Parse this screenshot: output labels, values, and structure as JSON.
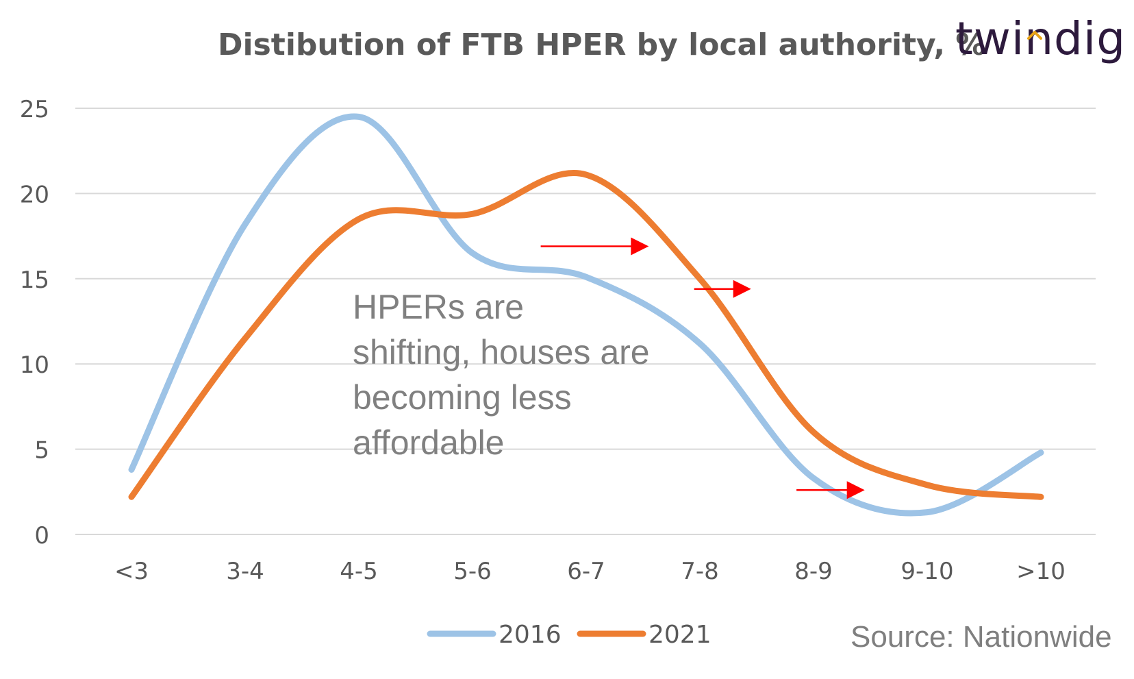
{
  "chart_data": {
    "type": "line",
    "title": "Distibution of FTB HPER by local authority, %",
    "categories": [
      "<3",
      "3-4",
      "4-5",
      "5-6",
      "6-7",
      "7-8",
      "8-9",
      "9-10",
      ">10"
    ],
    "series": [
      {
        "name": "2016",
        "values": [
          3.8,
          18.2,
          24.5,
          16.5,
          15.1,
          11.2,
          3.3,
          1.3,
          4.8
        ],
        "color": "#9dc3e6"
      },
      {
        "name": "2021",
        "values": [
          2.2,
          11.5,
          18.5,
          18.8,
          21.1,
          15.0,
          6.0,
          2.9,
          2.2
        ],
        "color": "#ed7d31"
      }
    ],
    "yticks": [
      0,
      5,
      10,
      15,
      20,
      25
    ],
    "ylim": [
      0,
      25
    ],
    "grid": true,
    "legend": "bottom-center",
    "gridline_color": "#d9d9d9",
    "annotation_arrow_color": "#ff0000"
  },
  "annotation": {
    "lines": [
      "HPERs are",
      "shifting, houses are",
      "becoming less",
      "affordable"
    ]
  },
  "brand": {
    "text": "twindig"
  },
  "source": {
    "text": "Source: Nationwide"
  }
}
